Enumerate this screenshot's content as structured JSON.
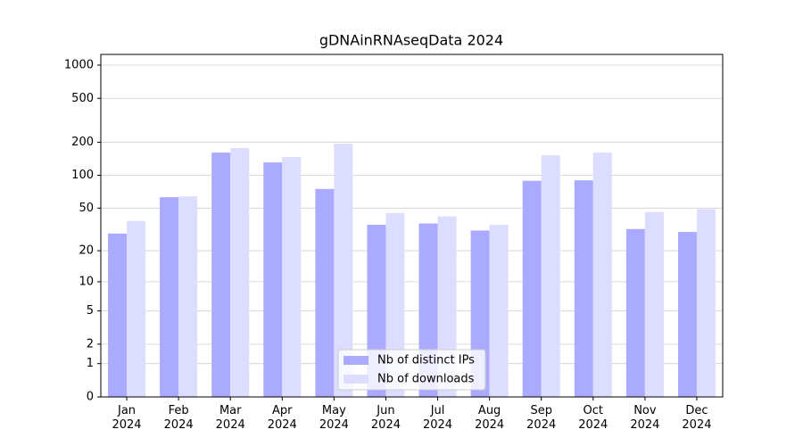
{
  "chart_data": {
    "type": "bar",
    "title": "gDNAinRNAseqData 2024",
    "categories": [
      "Jan\n2024",
      "Feb\n2024",
      "Mar\n2024",
      "Apr\n2024",
      "May\n2024",
      "Jun\n2024",
      "Jul\n2024",
      "Aug\n2024",
      "Sep\n2024",
      "Oct\n2024",
      "Nov\n2024",
      "Dec\n2024"
    ],
    "series": [
      {
        "name": "Nb of distinct IPs",
        "color": "#aaaaff",
        "values": [
          29,
          63,
          161,
          131,
          75,
          35,
          36,
          31,
          89,
          90,
          32,
          30
        ]
      },
      {
        "name": "Nb of downloads",
        "color": "#ddddff",
        "values": [
          38,
          64,
          177,
          147,
          194,
          45,
          42,
          35,
          152,
          161,
          46,
          49
        ]
      }
    ],
    "yscale": "log1p",
    "ylim": [
      0,
      1250
    ],
    "yticks": [
      0,
      1,
      2,
      5,
      10,
      20,
      50,
      100,
      200,
      500,
      1000
    ],
    "grid": true,
    "legend": "lower center"
  }
}
